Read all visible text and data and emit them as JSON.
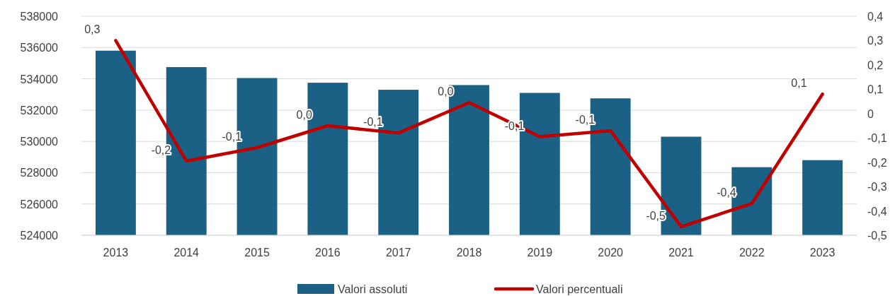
{
  "chart_data": {
    "type": "bar",
    "categories": [
      "2013",
      "2014",
      "2015",
      "2016",
      "2017",
      "2018",
      "2019",
      "2020",
      "2021",
      "2022",
      "2023"
    ],
    "series": [
      {
        "name": "Valori assoluti",
        "color": "#1b6185",
        "values": [
          535800,
          534750,
          534050,
          533750,
          533300,
          533600,
          533100,
          532750,
          530300,
          528350,
          528800
        ]
      },
      {
        "name": "Valori percentuali",
        "type": "line",
        "axis": "y2",
        "color": "#c00000",
        "values": [
          0.3,
          -0.195,
          -0.14,
          -0.05,
          -0.08,
          0.045,
          -0.095,
          -0.07,
          -0.465,
          -0.37,
          0.08
        ],
        "value_labels": [
          "0,3",
          "-0,2",
          "-0,1",
          "0,0",
          "-0,1",
          "0,0",
          "-0,1",
          "-0,1",
          "-0,5",
          "-0,4",
          "0,1"
        ]
      }
    ],
    "ylim": [
      524000,
      538000
    ],
    "yticks": [
      524000,
      526000,
      528000,
      530000,
      532000,
      534000,
      536000,
      538000
    ],
    "y2lim": [
      -0.5,
      0.4
    ],
    "y2ticks": [
      {
        "value": -0.5,
        "label": "-0,5"
      },
      {
        "value": -0.4,
        "label": "-0,4"
      },
      {
        "value": -0.3,
        "label": "-0,3"
      },
      {
        "value": -0.2,
        "label": "-0,2"
      },
      {
        "value": -0.1,
        "label": "-0,1"
      },
      0,
      {
        "value": 0.1,
        "label": "0,1"
      },
      {
        "value": 0.2,
        "label": "0,2"
      },
      {
        "value": 0.3,
        "label": "0,3"
      },
      {
        "value": 0.4,
        "label": "0,4"
      }
    ],
    "grid": "y",
    "legend": "bottom",
    "marker": "none",
    "line_style": "solid"
  }
}
